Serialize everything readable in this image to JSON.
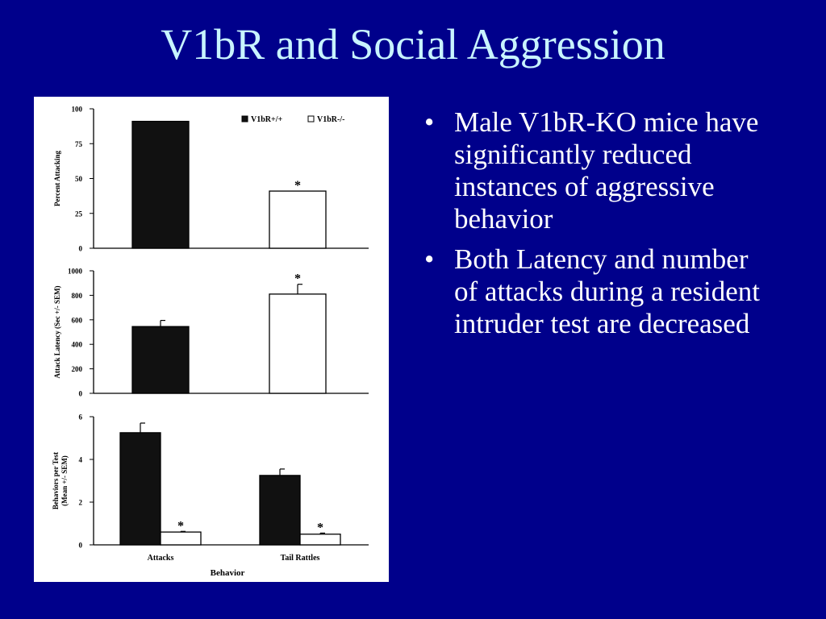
{
  "slide": {
    "title": "V1bR and Social Aggression",
    "bullets": [
      "Male V1bR-KO mice have significantly reduced instances of aggressive behavior",
      "Both Latency and number of attacks during a resident intruder test are decreased"
    ],
    "bullet_marker": "•"
  },
  "chart_data": [
    {
      "type": "bar",
      "ylabel": "Percent Attacking",
      "ylim": [
        0,
        100
      ],
      "yticks": [
        0,
        25,
        50,
        75,
        100
      ],
      "categories": [
        ""
      ],
      "series": [
        {
          "name": "V1bR+/+",
          "values": [
            91
          ],
          "errors": [
            null
          ],
          "color": "#111111"
        },
        {
          "name": "V1bR-/-",
          "values": [
            41
          ],
          "errors": [
            null
          ],
          "color": "#ffffff"
        }
      ],
      "annotations": [
        {
          "series": 1,
          "category": 0,
          "text": "*"
        }
      ],
      "legend": "top-right",
      "grid": false
    },
    {
      "type": "bar",
      "ylabel": "Attack Latency (Sec +/- SEM)",
      "ylim": [
        0,
        1000
      ],
      "yticks": [
        0,
        200,
        400,
        600,
        800,
        1000
      ],
      "categories": [
        ""
      ],
      "series": [
        {
          "name": "V1bR+/+",
          "values": [
            545
          ],
          "errors": [
            50
          ],
          "color": "#111111"
        },
        {
          "name": "V1bR-/-",
          "values": [
            810
          ],
          "errors": [
            80
          ],
          "color": "#ffffff"
        }
      ],
      "annotations": [
        {
          "series": 1,
          "category": 0,
          "text": "*"
        }
      ],
      "grid": false
    },
    {
      "type": "bar",
      "ylabel": "Behaviors per Test (Mean +/- SEM)",
      "xlabel": "Behavior",
      "ylim": [
        0,
        6
      ],
      "yticks": [
        0,
        2,
        4,
        6
      ],
      "categories": [
        "Attacks",
        "Tail Rattles"
      ],
      "series": [
        {
          "name": "V1bR+/+",
          "values": [
            5.25,
            3.25
          ],
          "errors": [
            0.45,
            0.3
          ],
          "color": "#111111"
        },
        {
          "name": "V1bR-/-",
          "values": [
            0.6,
            0.5
          ],
          "errors": [
            0.03,
            0.05
          ],
          "color": "#ffffff"
        }
      ],
      "annotations": [
        {
          "series": 1,
          "category": 0,
          "text": "*"
        },
        {
          "series": 1,
          "category": 1,
          "text": "*"
        }
      ],
      "grid": false
    }
  ]
}
